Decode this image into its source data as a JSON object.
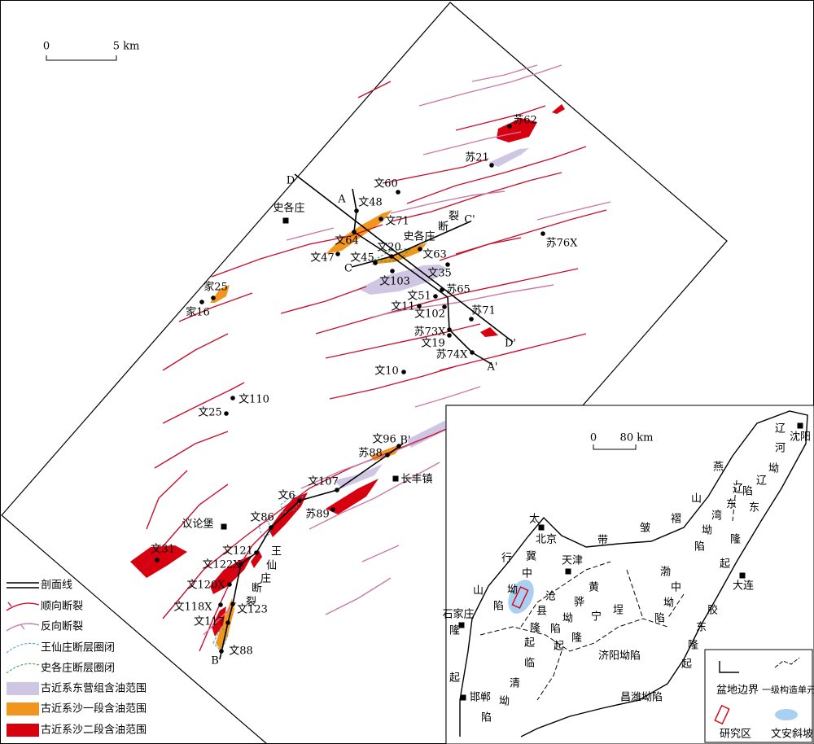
{
  "scale": {
    "zero": "0",
    "length": "5 km"
  },
  "wells": [
    "苏62",
    "苏21",
    "文60",
    "文48",
    "文71",
    "文64",
    "文47",
    "文45",
    "文20",
    "文63",
    "苏76X",
    "文35",
    "文103",
    "苏65",
    "家25",
    "家16",
    "文51",
    "文11",
    "文102",
    "苏71",
    "苏73X",
    "文19",
    "苏74X",
    "文10",
    "文110",
    "文25",
    "文96",
    "苏88",
    "文107",
    "文6",
    "苏89",
    "文86",
    "文121",
    "文31",
    "文122X",
    "文120X",
    "文118X",
    "文123",
    "文117",
    "文88"
  ],
  "towns": [
    "史各庄",
    "长丰镇",
    "议论堡"
  ],
  "section_ends": [
    "D",
    "D'",
    "A",
    "A'",
    "C",
    "C'",
    "B'",
    "B"
  ],
  "faults": {
    "wangxianzhuang": "王仙庄断裂",
    "shigezhuang_name": "史各庄",
    "shigezhuang_rest": "断裂"
  },
  "legend": [
    "剖面线",
    "顺向断裂",
    "反向断裂",
    "王仙庄断层圈闭",
    "史各庄断层圈闭",
    "古近系东营组含油范围",
    "古近系沙一段含油范围",
    "古近系沙二段含油范围"
  ],
  "inset": {
    "scale": {
      "zero": "0",
      "length": "80 km"
    },
    "cities": [
      "沈阳",
      "北京",
      "天津",
      "大连",
      "石家庄",
      "邯郸"
    ],
    "units": [
      "辽河坳陷",
      "燕山褶皱带",
      "辽东湾坳陷",
      "辽东隆起",
      "太行山隆起",
      "冀中坳陷",
      "黄骅坳陷",
      "沧县隆起",
      "埕宁隆起",
      "渤中坳陷",
      "胶东隆起",
      "临清坳陷",
      "济阳坳陷",
      "昌潍坳陷"
    ],
    "legend": [
      "盆地边界",
      "一级构造单元分界线",
      "研究区",
      "文安斜坡"
    ]
  }
}
